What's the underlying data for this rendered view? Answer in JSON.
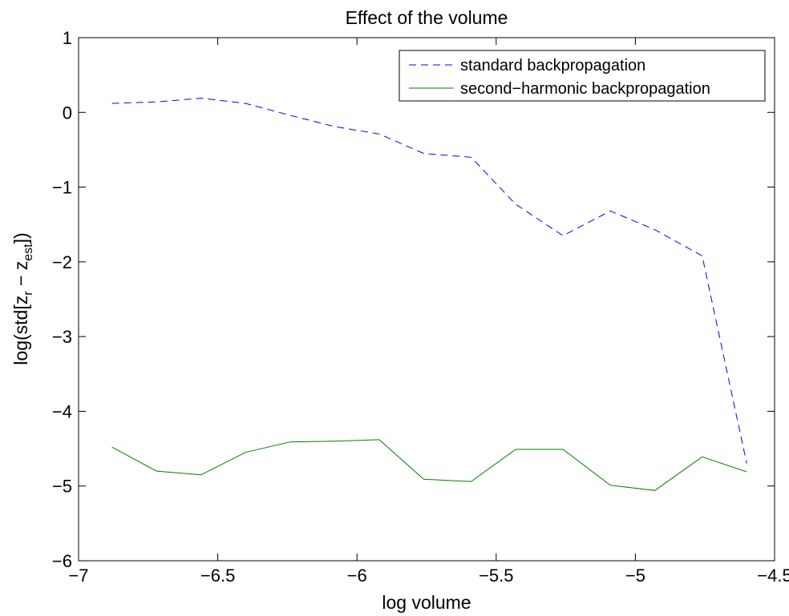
{
  "chart_data": {
    "type": "line",
    "title": "Effect of the volume",
    "xlabel": "log volume",
    "ylabel": {
      "prefix": "log(std[z",
      "sub1": "r",
      "middle": " − z",
      "sub2": "est",
      "suffix": "])"
    },
    "xlim": [
      -7,
      -4.5
    ],
    "ylim": [
      -6,
      1
    ],
    "xticks": [
      -7,
      -6.5,
      -6,
      -5.5,
      -5,
      -4.5
    ],
    "xtick_labels": [
      "−7",
      "−6.5",
      "−6",
      "−5.5",
      "−5",
      "−4.5"
    ],
    "yticks": [
      1,
      0,
      -1,
      -2,
      -3,
      -4,
      -5,
      -6
    ],
    "ytick_labels": [
      "1",
      "0",
      "−1",
      "−2",
      "−3",
      "−4",
      "−5",
      "−6"
    ],
    "grid": false,
    "legend_position": "top-right",
    "series": [
      {
        "name": "standard backpropagation",
        "color": "#0000ff",
        "style": "dashed",
        "x": [
          -6.88,
          -6.72,
          -6.56,
          -6.4,
          -6.24,
          -6.08,
          -5.92,
          -5.76,
          -5.59,
          -5.43,
          -5.26,
          -5.09,
          -4.93,
          -4.76,
          -4.6
        ],
        "y": [
          0.12,
          0.14,
          0.19,
          0.12,
          -0.04,
          -0.19,
          -0.29,
          -0.55,
          -0.6,
          -1.23,
          -1.65,
          -1.32,
          -1.57,
          -1.92,
          -4.7
        ]
      },
      {
        "name": "second−harmonic backpropagation",
        "color": "#007f00",
        "style": "solid",
        "x": [
          -6.88,
          -6.72,
          -6.56,
          -6.4,
          -6.24,
          -6.08,
          -5.92,
          -5.76,
          -5.59,
          -5.43,
          -5.26,
          -5.09,
          -4.93,
          -4.76,
          -4.6
        ],
        "y": [
          -4.48,
          -4.8,
          -4.85,
          -4.55,
          -4.41,
          -4.4,
          -4.38,
          -4.91,
          -4.94,
          -4.51,
          -4.51,
          -4.99,
          -5.06,
          -4.61,
          -4.81
        ]
      }
    ]
  }
}
